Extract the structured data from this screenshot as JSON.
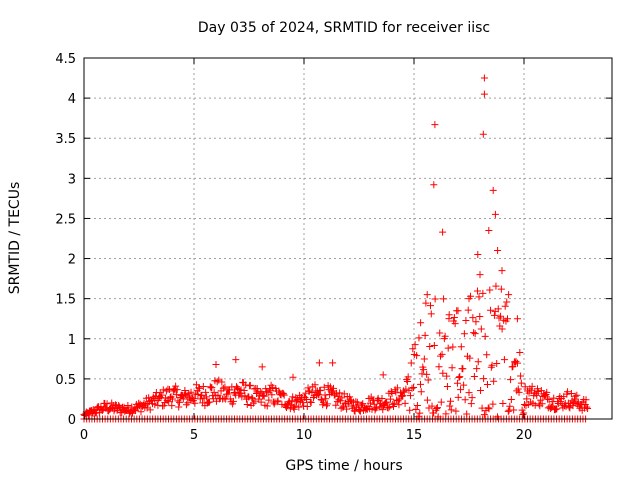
{
  "chart_data": {
    "type": "scatter",
    "title": "Day 035 of 2024, SRMTID for receiver iisc",
    "xlabel": "GPS time / hours",
    "ylabel": "SRMTID / TECUs",
    "xlim": [
      0,
      24
    ],
    "ylim": [
      0,
      4.5
    ],
    "xticks": [
      0,
      5,
      10,
      15,
      20
    ],
    "yticks": [
      0,
      0.5,
      1,
      1.5,
      2,
      2.5,
      3,
      3.5,
      4,
      4.5
    ],
    "grid": true,
    "marker": "+",
    "color": "#ff0000",
    "series": [
      {
        "name": "SRMTID",
        "description_envelope": "baseline",
        "envelope": {
          "x": [
            0,
            0.5,
            1,
            1.5,
            2,
            2.5,
            3,
            3.5,
            4,
            4.5,
            5,
            5.5,
            6,
            6.5,
            7,
            7.5,
            8,
            8.5,
            9,
            9.5,
            10,
            10.5,
            11,
            11.5,
            12,
            12.5,
            13,
            13.5,
            14,
            14.5,
            15,
            15.5,
            16,
            16.5,
            17,
            17.5,
            18,
            18.5,
            19,
            19.5,
            20,
            20.5,
            21,
            21.5,
            22,
            22.5,
            23
          ],
          "y": [
            0.05,
            0.1,
            0.15,
            0.13,
            0.12,
            0.15,
            0.2,
            0.25,
            0.3,
            0.25,
            0.3,
            0.3,
            0.35,
            0.3,
            0.35,
            0.3,
            0.25,
            0.3,
            0.25,
            0.2,
            0.25,
            0.3,
            0.3,
            0.25,
            0.2,
            0.15,
            0.2,
            0.2,
            0.25,
            0.3,
            0.5,
            0.8,
            1.0,
            0.8,
            0.7,
            0.8,
            0.9,
            0.9,
            0.9,
            0.8,
            0.3,
            0.3,
            0.25,
            0.2,
            0.25,
            0.2,
            0.15
          ]
        },
        "spikes": {
          "x": [
            6,
            6.9,
            8.1,
            9.5,
            10.7,
            11.3,
            13.6,
            15.3,
            15.6,
            15.9,
            15.95,
            16.3,
            16.6,
            17.0,
            17.5,
            17.9,
            18.0,
            18.15,
            18.2,
            18.2,
            18.4,
            18.6,
            18.7,
            18.8,
            19.0,
            19.3,
            19.7
          ],
          "y": [
            0.68,
            0.74,
            0.65,
            0.52,
            0.7,
            0.7,
            0.55,
            1.2,
            1.55,
            2.92,
            3.67,
            2.33,
            1.3,
            1.35,
            1.5,
            2.05,
            1.8,
            3.55,
            4.05,
            4.25,
            2.35,
            2.85,
            2.55,
            2.1,
            1.85,
            1.55,
            1.25
          ]
        }
      }
    ]
  }
}
